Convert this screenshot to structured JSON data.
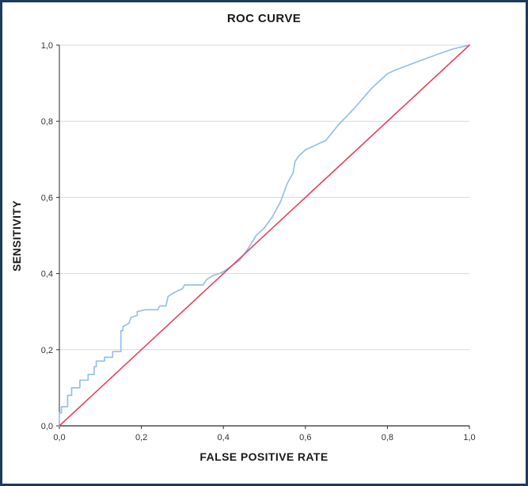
{
  "frame": {
    "border_color": "#1e3a5f",
    "background": "#ffffff"
  },
  "chart_data": {
    "type": "line",
    "title": "ROC CURVE",
    "xlabel": "FALSE POSITIVE RATE",
    "ylabel": "SENSITIVITY",
    "xlim": [
      0,
      1
    ],
    "ylim": [
      0,
      1
    ],
    "x_ticks": [
      0,
      0.2,
      0.4,
      0.6,
      0.8,
      1
    ],
    "x_tick_labels": [
      "0,0",
      "0,2",
      "0,4",
      "0,6",
      "0,8",
      "1,0"
    ],
    "y_ticks": [
      0,
      0.2,
      0.4,
      0.6,
      0.8,
      1
    ],
    "y_tick_labels": [
      "0,0",
      "0,2",
      "0,4",
      "0,6",
      "0,8",
      "1,0"
    ],
    "grid": "horizontal-only",
    "legend": "none",
    "colors": {
      "grid": "#d8d8d8",
      "axis": "#2b2b2b",
      "tick_text": "#333333"
    },
    "series": [
      {
        "name": "roc-curve",
        "color": "#96c0e8",
        "width": 1.7,
        "points": [
          [
            0,
            0
          ],
          [
            0,
            0.034
          ],
          [
            0.005,
            0.034
          ],
          [
            0.005,
            0.05
          ],
          [
            0.02,
            0.05
          ],
          [
            0.02,
            0.08
          ],
          [
            0.03,
            0.08
          ],
          [
            0.03,
            0.1
          ],
          [
            0.05,
            0.1
          ],
          [
            0.05,
            0.12
          ],
          [
            0.07,
            0.12
          ],
          [
            0.07,
            0.135
          ],
          [
            0.085,
            0.135
          ],
          [
            0.085,
            0.155
          ],
          [
            0.09,
            0.155
          ],
          [
            0.09,
            0.17
          ],
          [
            0.11,
            0.17
          ],
          [
            0.11,
            0.18
          ],
          [
            0.13,
            0.18
          ],
          [
            0.13,
            0.195
          ],
          [
            0.15,
            0.195
          ],
          [
            0.15,
            0.25
          ],
          [
            0.155,
            0.25
          ],
          [
            0.155,
            0.26
          ],
          [
            0.17,
            0.27
          ],
          [
            0.175,
            0.285
          ],
          [
            0.19,
            0.29
          ],
          [
            0.19,
            0.3
          ],
          [
            0.21,
            0.305
          ],
          [
            0.24,
            0.305
          ],
          [
            0.245,
            0.315
          ],
          [
            0.26,
            0.315
          ],
          [
            0.265,
            0.34
          ],
          [
            0.28,
            0.35
          ],
          [
            0.3,
            0.36
          ],
          [
            0.305,
            0.37
          ],
          [
            0.35,
            0.37
          ],
          [
            0.36,
            0.385
          ],
          [
            0.375,
            0.395
          ],
          [
            0.39,
            0.4
          ],
          [
            0.4,
            0.405
          ],
          [
            0.42,
            0.42
          ],
          [
            0.44,
            0.435
          ],
          [
            0.46,
            0.465
          ],
          [
            0.48,
            0.5
          ],
          [
            0.5,
            0.52
          ],
          [
            0.52,
            0.55
          ],
          [
            0.54,
            0.59
          ],
          [
            0.555,
            0.635
          ],
          [
            0.57,
            0.665
          ],
          [
            0.575,
            0.695
          ],
          [
            0.585,
            0.71
          ],
          [
            0.6,
            0.725
          ],
          [
            0.62,
            0.735
          ],
          [
            0.65,
            0.75
          ],
          [
            0.68,
            0.79
          ],
          [
            0.72,
            0.835
          ],
          [
            0.76,
            0.885
          ],
          [
            0.8,
            0.925
          ],
          [
            0.82,
            0.935
          ],
          [
            0.87,
            0.955
          ],
          [
            0.92,
            0.975
          ],
          [
            0.96,
            0.99
          ],
          [
            1,
            1
          ]
        ]
      },
      {
        "name": "reference-diagonal",
        "color": "#e8415f",
        "width": 1.6,
        "points": [
          [
            0,
            0
          ],
          [
            1,
            1
          ]
        ]
      }
    ]
  }
}
